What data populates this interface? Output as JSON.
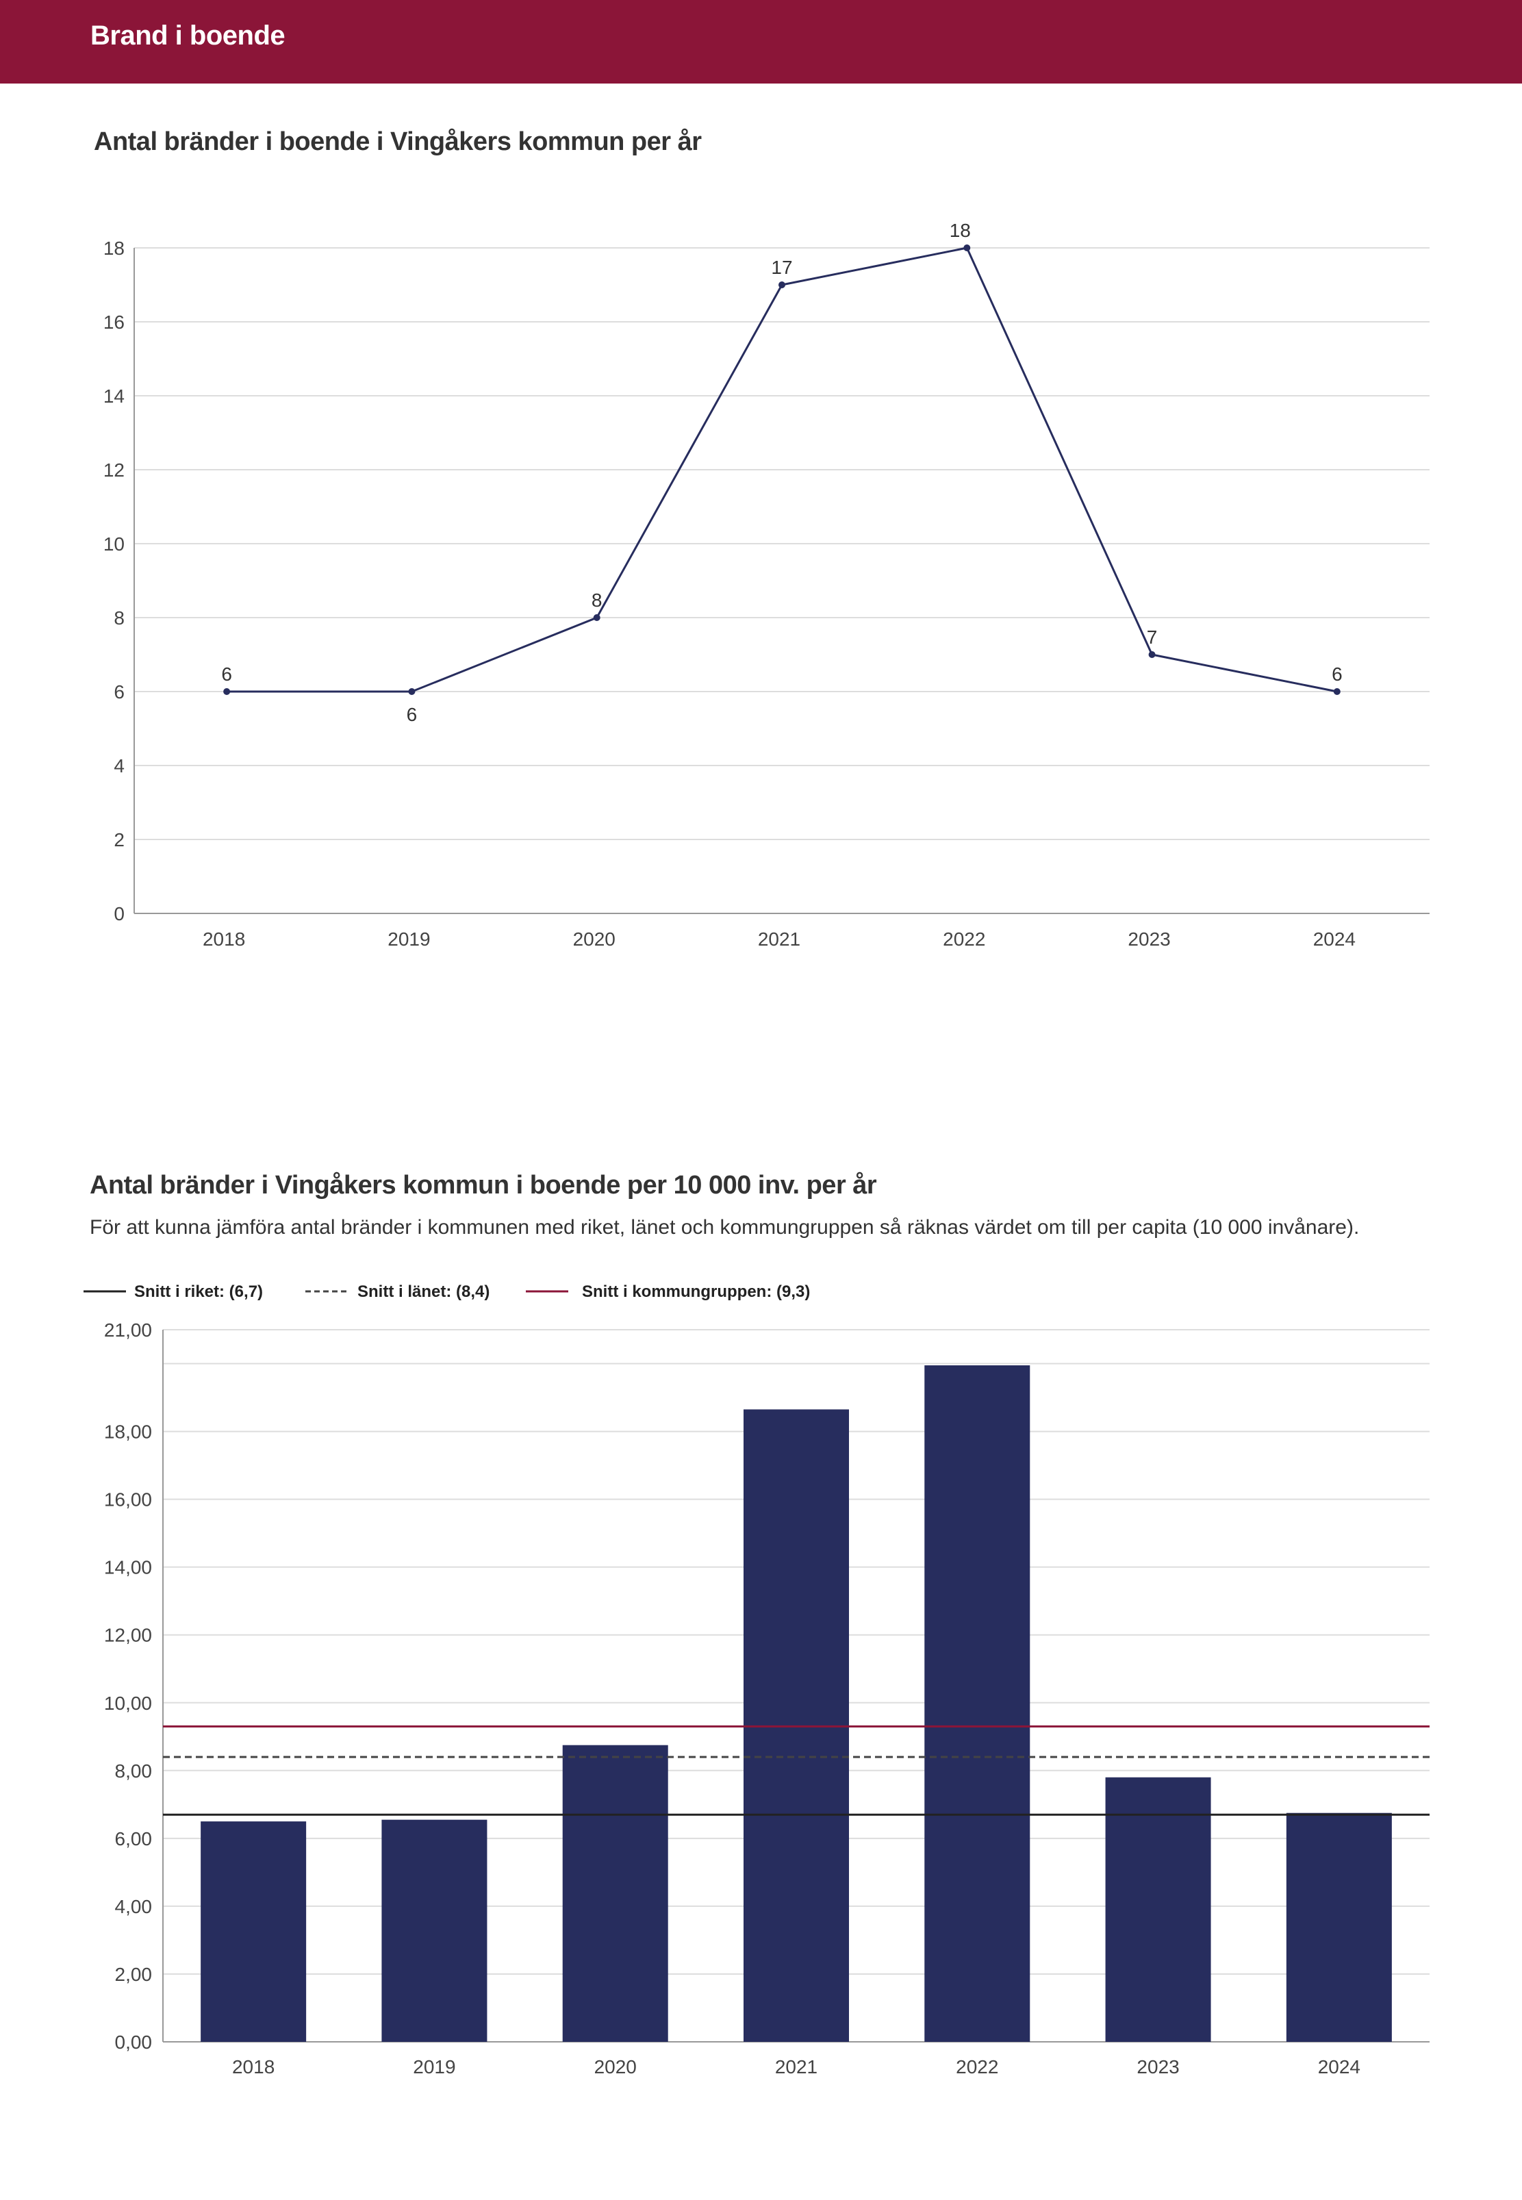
{
  "header": {
    "title": "Brand i boende"
  },
  "colors": {
    "header_bg": "#8b1538",
    "series": "#272d5e",
    "grid": "#dddddd",
    "axis": "#999999",
    "riket": "#222222",
    "lanet": "#444444",
    "kommungrupp": "#8b1538"
  },
  "chart_data": [
    {
      "type": "line",
      "title": "Antal bränder i boende i Vingåkers kommun per år",
      "categories": [
        "2018",
        "2019",
        "2020",
        "2021",
        "2022",
        "2023",
        "2024"
      ],
      "values": [
        6,
        6,
        8,
        17,
        18,
        7,
        6
      ],
      "data_labels": [
        "6",
        "6",
        "8",
        "17",
        "18",
        "7",
        "6"
      ],
      "label_below": [
        false,
        true,
        false,
        false,
        false,
        false,
        false
      ],
      "yticks": [
        "0",
        "2",
        "4",
        "6",
        "8",
        "10",
        "12",
        "14",
        "16",
        "18"
      ],
      "ylim": [
        0,
        18
      ],
      "grid": true
    },
    {
      "type": "bar",
      "title": "Antal bränder i Vingåkers kommun i boende per 10 000 inv. per år",
      "subtitle": "För att kunna jämföra antal bränder i kommunen med riket, länet och kommungruppen så räknas värdet om till per capita (10 000 invånare).",
      "categories": [
        "2018",
        "2019",
        "2020",
        "2021",
        "2022",
        "2023",
        "2024"
      ],
      "values": [
        6.5,
        6.55,
        8.75,
        18.65,
        19.95,
        7.8,
        6.75
      ],
      "yticks": [
        "0,00",
        "2,00",
        "4,00",
        "6,00",
        "8,00",
        "10,00",
        "12,00",
        "14,00",
        "16,00",
        "18,00",
        "21,00"
      ],
      "ytick_values": [
        0,
        2,
        4,
        6,
        8,
        10,
        12,
        14,
        16,
        18,
        21
      ],
      "ylim": [
        0,
        21
      ],
      "grid": true,
      "legend_position": "top-left",
      "reference_lines": [
        {
          "name": "Snitt i riket: (6,7)",
          "value": 6.7,
          "style": "solid",
          "color": "#222222"
        },
        {
          "name": "Snitt i länet: (8,4)",
          "value": 8.4,
          "style": "dashed",
          "color": "#444444"
        },
        {
          "name": "Snitt i kommungruppen: (9,3)",
          "value": 9.3,
          "style": "solid",
          "color": "#8b1538"
        }
      ]
    }
  ]
}
